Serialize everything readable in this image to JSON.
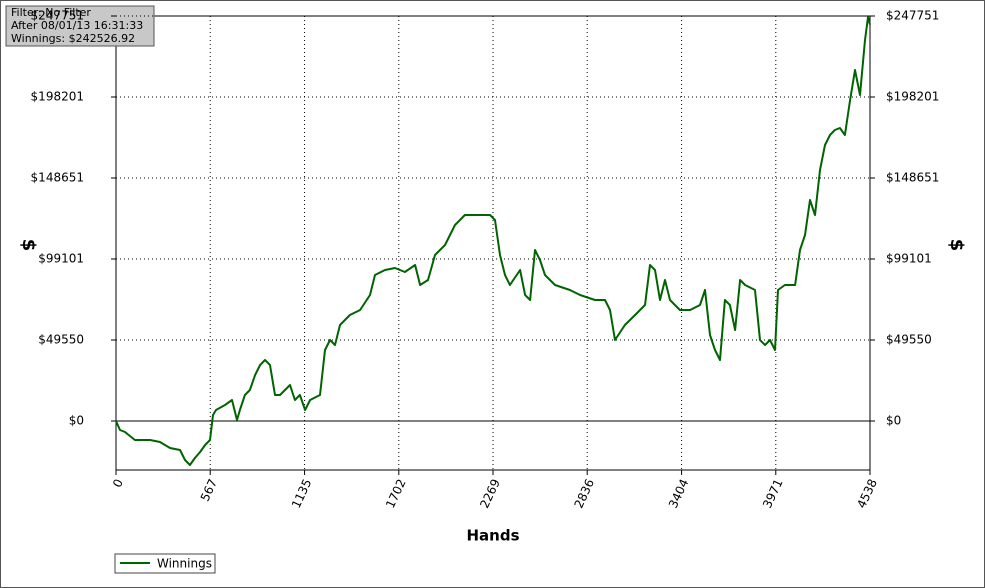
{
  "chart_data": {
    "type": "line",
    "info": [
      "Filter: No Filter",
      "After 08/01/13 16:31:33",
      "Winnings: $242526.92"
    ],
    "xlabel": "Hands",
    "ylabel": "$",
    "y2label": "$",
    "x": [
      0,
      24,
      54,
      114,
      205,
      265,
      325,
      385,
      415,
      445,
      475,
      506,
      536,
      566,
      584,
      602,
      656,
      698,
      728,
      746,
      776,
      806,
      837,
      867,
      897,
      927,
      957,
      987,
      1047,
      1077,
      1107,
      1138,
      1168,
      1228,
      1258,
      1288,
      1318,
      1348,
      1408,
      1469,
      1529,
      1559,
      1619,
      1679,
      1739,
      1800,
      1830,
      1878,
      1920,
      1980,
      2040,
      2100,
      2191,
      2251,
      2281,
      2311,
      2341,
      2371,
      2432,
      2462,
      2492,
      2522,
      2552,
      2582,
      2642,
      2732,
      2793,
      2883,
      2943,
      2973,
      3003,
      3063,
      3124,
      3184,
      3214,
      3244,
      3274,
      3304,
      3334,
      3394,
      3455,
      3515,
      3545,
      3575,
      3605,
      3635,
      3665,
      3695,
      3726,
      3756,
      3786,
      3846,
      3876,
      3906,
      3936,
      3966,
      3984,
      4026,
      4087,
      4117,
      4147,
      4177,
      4207,
      4237,
      4267,
      4297,
      4327,
      4357,
      4387,
      4418,
      4448,
      4478,
      4508,
      4526,
      4538
    ],
    "series": [
      {
        "name": "Winnings",
        "color": "#006400",
        "values": [
          0,
          -5505,
          -6728,
          -11622,
          -11622,
          -12846,
          -16516,
          -17739,
          -23856,
          -26915,
          -22633,
          -18963,
          -14681,
          -11622,
          3670,
          6729,
          9787,
          12846,
          612,
          6729,
          15904,
          18963,
          28138,
          34255,
          37314,
          34255,
          15904,
          15904,
          22021,
          12846,
          15904,
          6729,
          12846,
          15904,
          43431,
          49548,
          46489,
          58723,
          64840,
          67899,
          77074,
          89308,
          92367,
          93590,
          91143,
          95425,
          83191,
          86250,
          101542,
          107659,
          119893,
          126010,
          126010,
          126010,
          122952,
          101542,
          89308,
          83191,
          92367,
          77074,
          74016,
          104601,
          98484,
          89308,
          83191,
          80133,
          77074,
          74016,
          74016,
          67899,
          49548,
          58723,
          64840,
          70957,
          95425,
          92367,
          74016,
          86250,
          74016,
          67899,
          67899,
          70957,
          80133,
          52606,
          43431,
          37314,
          74016,
          70957,
          55665,
          86250,
          83191,
          80133,
          49548,
          46489,
          49548,
          43431,
          80133,
          83191,
          83191,
          104601,
          113776,
          135186,
          126010,
          153537,
          168829,
          174946,
          178005,
          179228,
          174946,
          196356,
          214707,
          199414,
          233058,
          247000,
          242527
        ]
      }
    ],
    "xlim": [
      0,
      4538
    ],
    "xticks": [
      0,
      567,
      1135,
      1702,
      2269,
      2836,
      3404,
      3971,
      4538
    ],
    "ylim": [
      -29973,
      247751
    ],
    "yticks": [
      {
        "value": 0,
        "label": "$0"
      },
      {
        "value": 49550,
        "label": "$49550"
      },
      {
        "value": 99101,
        "label": "$99101"
      },
      {
        "value": 148651,
        "label": "$148651"
      },
      {
        "value": 198201,
        "label": "$198201"
      },
      {
        "value": 247751,
        "label": "$247751"
      }
    ],
    "y2lim": [
      -29973,
      247751
    ],
    "y2ticks": [
      {
        "value": 0,
        "label": "$0"
      },
      {
        "value": 49550,
        "label": "$49550"
      },
      {
        "value": 99101,
        "label": "$99101"
      },
      {
        "value": 148651,
        "label": "$148651"
      },
      {
        "value": 198201,
        "label": "$198201"
      },
      {
        "value": 247751,
        "label": "$247751"
      }
    ],
    "grid": true
  }
}
